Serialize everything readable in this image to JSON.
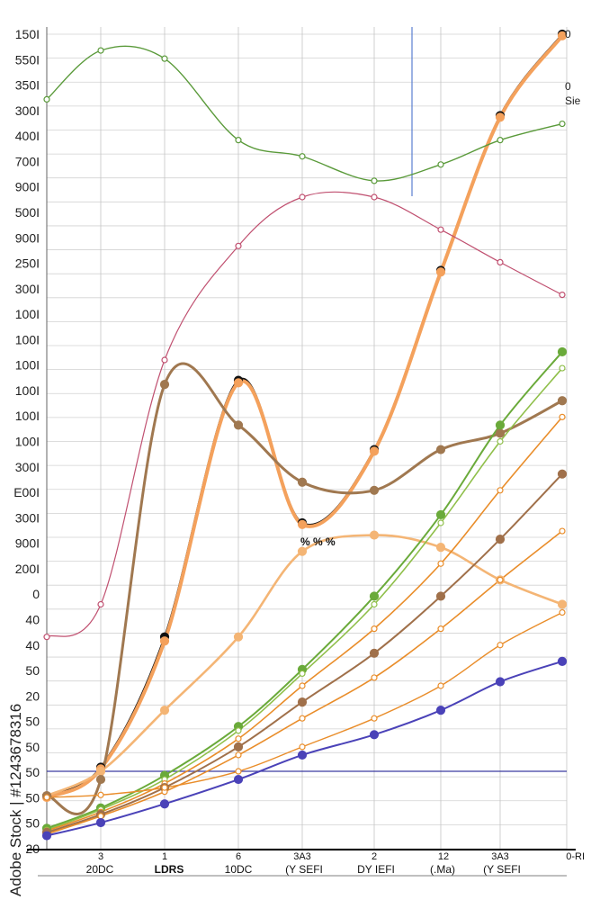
{
  "watermark": "Adobe Stock | #1243678316",
  "chart_data": {
    "type": "line",
    "title": "",
    "xlabel": "",
    "ylabel": "",
    "grid": true,
    "y_tick_labels": [
      "150I",
      "550I",
      "350I",
      "300I",
      "400I",
      "700I",
      "900I",
      "500I",
      "900I",
      "250I",
      "300I",
      "100I",
      "100I",
      "100I",
      "100I",
      "100I",
      "100I",
      "300I",
      "E00I",
      "300I",
      "900I",
      "200I",
      "0",
      "40",
      "40",
      "50",
      "20",
      "50",
      "50",
      "50",
      "50",
      "50",
      "20"
    ],
    "x_tick_labels": [
      "3",
      "1",
      "6",
      "3A3",
      "2",
      "12",
      "3A3",
      "0-RI"
    ],
    "footer_labels": [
      "20DC",
      "LDRS",
      "10DC",
      "(Y SEFI",
      "DY IEFI",
      "(.Ma)",
      "(Y SEFI"
    ],
    "right_labels": [
      "0",
      "0",
      "Sie"
    ],
    "annotations": [
      "% % %"
    ],
    "ylim": [
      0,
      100
    ],
    "x": [
      0,
      1,
      2,
      3,
      4,
      5,
      6,
      7,
      8
    ],
    "series": [
      {
        "color": "#111111",
        "width": 2.2,
        "values": [
          6.5,
          10,
          26,
          57.5,
          40,
          49,
          71,
          90,
          100
        ]
      },
      {
        "color": "#f4a15c",
        "width": 4,
        "values": [
          6.3,
          9.8,
          25.5,
          57.2,
          39.8,
          48.8,
          70.8,
          89.8,
          99.8
        ]
      },
      {
        "color": "#f4b575",
        "width": 2.6,
        "values": [
          6.5,
          9.5,
          17,
          26,
          36.5,
          38.5,
          37,
          33,
          30
        ]
      },
      {
        "color": "#a07850",
        "width": 3,
        "values": [
          6.5,
          8.5,
          57,
          52,
          45,
          44,
          49,
          51,
          55
        ]
      },
      {
        "color": "#5a9a3a",
        "width": 1.4,
        "values": [
          92,
          98,
          97,
          87,
          85,
          82,
          84,
          87,
          89
        ]
      },
      {
        "color": "#c05070",
        "width": 1.2,
        "values": [
          26,
          30,
          60,
          74,
          80,
          80,
          76,
          72,
          68
        ]
      },
      {
        "color": "#6aaa3a",
        "width": 2,
        "values": [
          2.5,
          5,
          9,
          15,
          22,
          31,
          41,
          52,
          61
        ]
      },
      {
        "color": "#8fbf4a",
        "width": 1.6,
        "values": [
          2.3,
          4.8,
          8.5,
          14.5,
          21.5,
          30,
          40,
          50,
          59
        ]
      },
      {
        "color": "#e98d2a",
        "width": 1.6,
        "values": [
          2.2,
          4.5,
          8,
          13.5,
          20,
          27,
          35,
          44,
          53
        ]
      },
      {
        "color": "#a0704a",
        "width": 2,
        "values": [
          2,
          4.2,
          7.5,
          12.5,
          18,
          24,
          31,
          38,
          46
        ]
      },
      {
        "color": "#e98d2a",
        "width": 1.6,
        "values": [
          1.8,
          4,
          7,
          11.5,
          16,
          21,
          27,
          33,
          39
        ]
      },
      {
        "color": "#e98d2a",
        "width": 1.4,
        "values": [
          6.3,
          6.6,
          7.5,
          9.5,
          12.5,
          16,
          20,
          25,
          29
        ]
      },
      {
        "color": "#4a42b8",
        "width": 2,
        "values": [
          1.6,
          3.2,
          5.5,
          8.5,
          11.5,
          14,
          17,
          20.5,
          23
        ]
      }
    ]
  }
}
